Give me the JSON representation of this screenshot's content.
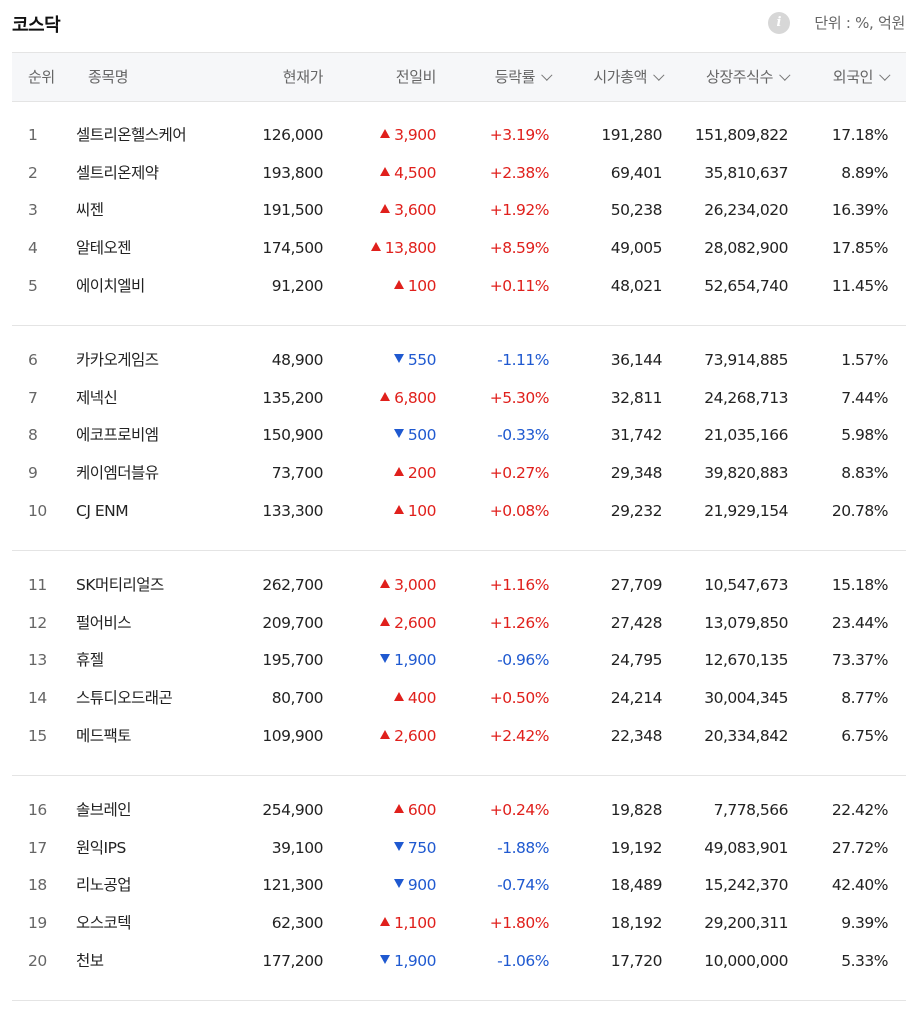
{
  "header": {
    "title": "코스닥",
    "info_icon": "info-icon",
    "unit_label": "단위 : %, 억원"
  },
  "columns": {
    "rank": "순위",
    "name": "종목명",
    "price": "현재가",
    "change": "전일비",
    "rate": "등락률",
    "market_cap": "시가총액",
    "shares": "상장주식수",
    "foreign": "외국인"
  },
  "colors": {
    "up": "#e0201c",
    "down": "#1f59d0"
  },
  "rows": [
    {
      "rank": "1",
      "name": "셀트리온헬스케어",
      "price": "126,000",
      "dir": "up",
      "change": "3,900",
      "rate": "+3.19%",
      "cap": "191,280",
      "shares": "151,809,822",
      "foreign": "17.18%"
    },
    {
      "rank": "2",
      "name": "셀트리온제약",
      "price": "193,800",
      "dir": "up",
      "change": "4,500",
      "rate": "+2.38%",
      "cap": "69,401",
      "shares": "35,810,637",
      "foreign": "8.89%"
    },
    {
      "rank": "3",
      "name": "씨젠",
      "price": "191,500",
      "dir": "up",
      "change": "3,600",
      "rate": "+1.92%",
      "cap": "50,238",
      "shares": "26,234,020",
      "foreign": "16.39%"
    },
    {
      "rank": "4",
      "name": "알테오젠",
      "price": "174,500",
      "dir": "up",
      "change": "13,800",
      "rate": "+8.59%",
      "cap": "49,005",
      "shares": "28,082,900",
      "foreign": "17.85%"
    },
    {
      "rank": "5",
      "name": "에이치엘비",
      "price": "91,200",
      "dir": "up",
      "change": "100",
      "rate": "+0.11%",
      "cap": "48,021",
      "shares": "52,654,740",
      "foreign": "11.45%"
    },
    {
      "rank": "6",
      "name": "카카오게임즈",
      "price": "48,900",
      "dir": "down",
      "change": "550",
      "rate": "-1.11%",
      "cap": "36,144",
      "shares": "73,914,885",
      "foreign": "1.57%"
    },
    {
      "rank": "7",
      "name": "제넥신",
      "price": "135,200",
      "dir": "up",
      "change": "6,800",
      "rate": "+5.30%",
      "cap": "32,811",
      "shares": "24,268,713",
      "foreign": "7.44%"
    },
    {
      "rank": "8",
      "name": "에코프로비엠",
      "price": "150,900",
      "dir": "down",
      "change": "500",
      "rate": "-0.33%",
      "cap": "31,742",
      "shares": "21,035,166",
      "foreign": "5.98%"
    },
    {
      "rank": "9",
      "name": "케이엠더블유",
      "price": "73,700",
      "dir": "up",
      "change": "200",
      "rate": "+0.27%",
      "cap": "29,348",
      "shares": "39,820,883",
      "foreign": "8.83%"
    },
    {
      "rank": "10",
      "name": "CJ ENM",
      "price": "133,300",
      "dir": "up",
      "change": "100",
      "rate": "+0.08%",
      "cap": "29,232",
      "shares": "21,929,154",
      "foreign": "20.78%"
    },
    {
      "rank": "11",
      "name": "SK머티리얼즈",
      "price": "262,700",
      "dir": "up",
      "change": "3,000",
      "rate": "+1.16%",
      "cap": "27,709",
      "shares": "10,547,673",
      "foreign": "15.18%"
    },
    {
      "rank": "12",
      "name": "펄어비스",
      "price": "209,700",
      "dir": "up",
      "change": "2,600",
      "rate": "+1.26%",
      "cap": "27,428",
      "shares": "13,079,850",
      "foreign": "23.44%"
    },
    {
      "rank": "13",
      "name": "휴젤",
      "price": "195,700",
      "dir": "down",
      "change": "1,900",
      "rate": "-0.96%",
      "cap": "24,795",
      "shares": "12,670,135",
      "foreign": "73.37%"
    },
    {
      "rank": "14",
      "name": "스튜디오드래곤",
      "price": "80,700",
      "dir": "up",
      "change": "400",
      "rate": "+0.50%",
      "cap": "24,214",
      "shares": "30,004,345",
      "foreign": "8.77%"
    },
    {
      "rank": "15",
      "name": "메드팩토",
      "price": "109,900",
      "dir": "up",
      "change": "2,600",
      "rate": "+2.42%",
      "cap": "22,348",
      "shares": "20,334,842",
      "foreign": "6.75%"
    },
    {
      "rank": "16",
      "name": "솔브레인",
      "price": "254,900",
      "dir": "up",
      "change": "600",
      "rate": "+0.24%",
      "cap": "19,828",
      "shares": "7,778,566",
      "foreign": "22.42%"
    },
    {
      "rank": "17",
      "name": "원익IPS",
      "price": "39,100",
      "dir": "down",
      "change": "750",
      "rate": "-1.88%",
      "cap": "19,192",
      "shares": "49,083,901",
      "foreign": "27.72%"
    },
    {
      "rank": "18",
      "name": "리노공업",
      "price": "121,300",
      "dir": "down",
      "change": "900",
      "rate": "-0.74%",
      "cap": "18,489",
      "shares": "15,242,370",
      "foreign": "42.40%"
    },
    {
      "rank": "19",
      "name": "오스코텍",
      "price": "62,300",
      "dir": "up",
      "change": "1,100",
      "rate": "+1.80%",
      "cap": "18,192",
      "shares": "29,200,311",
      "foreign": "9.39%"
    },
    {
      "rank": "20",
      "name": "천보",
      "price": "177,200",
      "dir": "down",
      "change": "1,900",
      "rate": "-1.06%",
      "cap": "17,720",
      "shares": "10,000,000",
      "foreign": "5.33%"
    }
  ]
}
